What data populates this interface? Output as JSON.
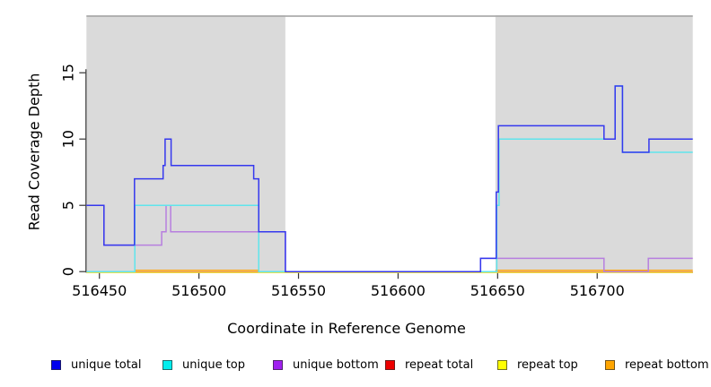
{
  "chart_data": {
    "type": "line",
    "subtype": "step",
    "title": "",
    "xlabel": "Coordinate in Reference Genome",
    "ylabel": "Read Coverage Depth",
    "xlim": [
      516443.5,
      516748
    ],
    "ylim": [
      0,
      19.34
    ],
    "x_ticks": [
      516450,
      516500,
      516550,
      516600,
      516650,
      516700
    ],
    "y_ticks": [
      0,
      5,
      10,
      15
    ],
    "grid": false,
    "legend_position": "bottom",
    "background_color": "#ffffff",
    "shaded_region_color": "#dadada",
    "shaded_regions": [
      {
        "x1": 516443.5,
        "x2": 516543.4
      },
      {
        "x1": 516648.9,
        "x2": 516748.0
      }
    ],
    "series": [
      {
        "name": "repeat total",
        "color": "#EE0000",
        "line_color": "#EE2222",
        "segments": [
          {
            "points": [
              [
                516443.5,
                0
              ]
            ],
            "end": 516748.0
          }
        ]
      },
      {
        "name": "repeat top",
        "color": "#FFFF00",
        "line_color": "#F2E43C",
        "segments": [
          {
            "points": [
              [
                516443.5,
                0
              ]
            ],
            "end": 516748.0
          }
        ]
      },
      {
        "name": "repeat bottom",
        "color": "#FFA500",
        "line_color": "#FFA510",
        "segments": [
          {
            "points": [
              [
                516467.7,
                0
              ]
            ],
            "end": 516530.0
          },
          {
            "points": [
              [
                516648.9,
                0
              ]
            ],
            "end": 516748.0
          }
        ]
      },
      {
        "name": "unique bottom",
        "color": "#A020F0",
        "line_color": "#B77FDF",
        "segments": [
          {
            "points": [
              [
                516443.5,
                5
              ],
              [
                516452.3,
                2
              ],
              [
                516481.3,
                3
              ],
              [
                516483.5,
                5
              ],
              [
                516485.8,
                3
              ],
              [
                516543.4,
                0
              ],
              [
                516641.4,
                1
              ],
              [
                516703.4,
                0
              ],
              [
                516725.7,
                1
              ]
            ],
            "end": 516748.0
          }
        ]
      },
      {
        "name": "unique top",
        "color": "#00EEEE",
        "line_color": "#5FE4EC",
        "segments": [
          {
            "points": [
              [
                516443.5,
                0
              ],
              [
                516467.8,
                5
              ],
              [
                516530.0,
                0
              ],
              [
                516649.6,
                5
              ],
              [
                516650.7,
                10
              ],
              [
                516709.0,
                14
              ],
              [
                516712.7,
                9
              ]
            ],
            "end": 516748.0
          }
        ]
      },
      {
        "name": "unique total",
        "color": "#0000EE",
        "line_color": "#3538EE",
        "segments": [
          {
            "points": [
              [
                516443.5,
                5
              ],
              [
                516452.3,
                2
              ],
              [
                516467.6,
                7
              ],
              [
                516482.0,
                8
              ],
              [
                516483.0,
                10
              ],
              [
                516486.0,
                8
              ],
              [
                516527.5,
                7
              ],
              [
                516530.0,
                3
              ],
              [
                516543.4,
                0
              ],
              [
                516641.4,
                1
              ],
              [
                516649.3,
                6
              ],
              [
                516650.4,
                11
              ],
              [
                516703.4,
                10
              ],
              [
                516709.0,
                14
              ],
              [
                516712.7,
                9
              ],
              [
                516726.0,
                10
              ]
            ],
            "end": 516748.0
          }
        ]
      }
    ],
    "legend": [
      {
        "label": "unique total",
        "color": "#0000EE"
      },
      {
        "label": "unique top",
        "color": "#00EEEE"
      },
      {
        "label": "unique bottom",
        "color": "#A020F0"
      },
      {
        "label": "repeat total",
        "color": "#EE0000"
      },
      {
        "label": "repeat top",
        "color": "#FFFF00"
      },
      {
        "label": "repeat bottom",
        "color": "#FFA500"
      }
    ]
  }
}
